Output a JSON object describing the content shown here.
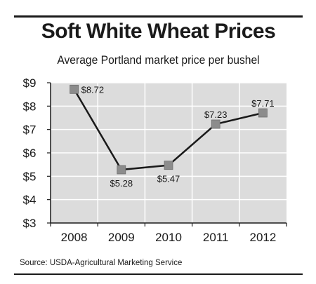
{
  "chart_data": {
    "type": "line",
    "title": "Soft White Wheat Prices",
    "subtitle": "Average Portland market price per bushel",
    "source": "Source: USDA-Agricultural Marketing Service",
    "categories": [
      "2008",
      "2009",
      "2010",
      "2011",
      "2012"
    ],
    "values": [
      8.72,
      5.28,
      5.47,
      7.23,
      7.71
    ],
    "data_labels": [
      "$8.72",
      "$5.28",
      "$5.47",
      "$7.23",
      "$7.71"
    ],
    "y_ticks": [
      3,
      4,
      5,
      6,
      7,
      8,
      9
    ],
    "y_tick_labels": [
      "$3",
      "$4",
      "$5",
      "$6",
      "$7",
      "$8",
      "$9"
    ],
    "ylim": [
      3,
      9
    ],
    "grid": true,
    "colors": {
      "plot_background": "#dcdcdc",
      "grid": "#ffffff",
      "line": "#1a1a1a",
      "marker": "#8c8c8c"
    }
  }
}
